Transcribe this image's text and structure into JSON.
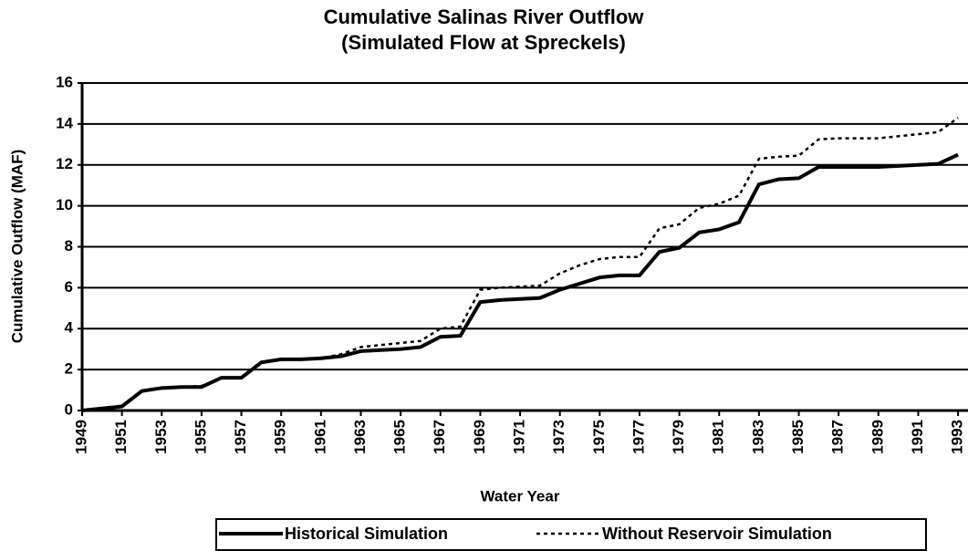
{
  "chart_data": {
    "type": "line",
    "title": "Cumulative Salinas River Outflow",
    "subtitle": "(Simulated Flow at Spreckels)",
    "xlabel": "Water Year",
    "ylabel": "Cumulative Outflow (MAF)",
    "x": [
      1949,
      1950,
      1951,
      1952,
      1953,
      1954,
      1955,
      1956,
      1957,
      1958,
      1959,
      1960,
      1961,
      1962,
      1963,
      1964,
      1965,
      1966,
      1967,
      1968,
      1969,
      1970,
      1971,
      1972,
      1973,
      1974,
      1975,
      1976,
      1977,
      1978,
      1979,
      1980,
      1981,
      1982,
      1983,
      1984,
      1985,
      1986,
      1987,
      1988,
      1989,
      1990,
      1991,
      1992,
      1993
    ],
    "series": [
      {
        "name": "Historical Simulation",
        "color": "#000000",
        "line_style": "solid",
        "values": [
          0,
          0.1,
          0.2,
          0.95,
          1.1,
          1.15,
          1.15,
          1.6,
          1.6,
          2.35,
          2.5,
          2.5,
          2.55,
          2.65,
          2.9,
          2.95,
          3.0,
          3.1,
          3.6,
          3.65,
          5.3,
          5.4,
          5.45,
          5.5,
          5.9,
          6.2,
          6.5,
          6.6,
          6.6,
          7.75,
          7.95,
          8.7,
          8.85,
          9.2,
          11.05,
          11.3,
          11.35,
          11.9,
          11.9,
          11.9,
          11.9,
          11.95,
          12.0,
          12.05,
          12.5
        ]
      },
      {
        "name": "Without Reservoir Simulation",
        "color": "#000000",
        "line_style": "dotted",
        "values": [
          0,
          0.1,
          0.2,
          0.95,
          1.1,
          1.15,
          1.2,
          1.6,
          1.6,
          2.35,
          2.5,
          2.5,
          2.55,
          2.75,
          3.1,
          3.2,
          3.3,
          3.4,
          4.0,
          4.1,
          5.9,
          6.0,
          6.05,
          6.1,
          6.7,
          7.1,
          7.4,
          7.5,
          7.5,
          8.9,
          9.1,
          9.9,
          10.1,
          10.5,
          12.3,
          12.4,
          12.45,
          13.25,
          13.3,
          13.3,
          13.3,
          13.4,
          13.5,
          13.6,
          14.3
        ]
      }
    ],
    "xlim": [
      1949,
      1993.5
    ],
    "xticks": [
      1949,
      1951,
      1953,
      1955,
      1957,
      1959,
      1961,
      1963,
      1965,
      1967,
      1969,
      1971,
      1973,
      1975,
      1977,
      1979,
      1981,
      1983,
      1985,
      1987,
      1989,
      1991,
      1993
    ],
    "ylim": [
      0,
      16
    ],
    "yticks": [
      0,
      2,
      4,
      6,
      8,
      10,
      12,
      14,
      16
    ],
    "grid": true,
    "legend": "bottom"
  }
}
